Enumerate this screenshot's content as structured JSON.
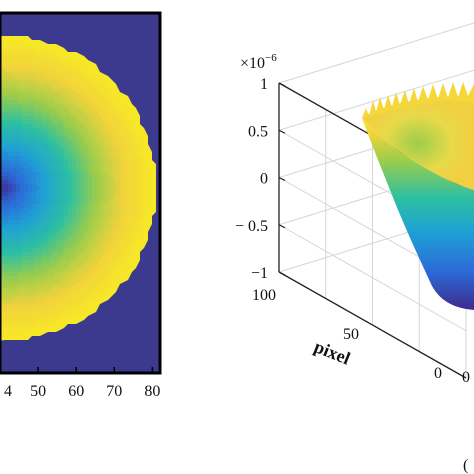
{
  "chart_data": [
    {
      "type": "heatmap",
      "title": "",
      "xlabel": "",
      "ylabel": "",
      "xlim": [
        40,
        82
      ],
      "x_ticks": [
        "50",
        "60",
        "70",
        "80"
      ],
      "x_tick_values": [
        50,
        60,
        70,
        80
      ],
      "x_partial_tick": "4",
      "pattern": "concentric-rings",
      "pattern_center_x": 41,
      "pattern_radius": 40,
      "background_color": "#3b3a8f",
      "colormap": [
        "#3e2a8c",
        "#2c6ad8",
        "#1f9fd5",
        "#2bbfa3",
        "#9ccd4b",
        "#f2d33b",
        "#f7e826"
      ]
    },
    {
      "type": "surface",
      "title": "",
      "xlabel": "pixel",
      "ylabel": "",
      "zlabel": "",
      "z_exponent_label": "×10",
      "z_exponent_power": "−6",
      "zlim": [
        -1,
        1
      ],
      "z_ticks": [
        "1",
        "0.5",
        "0",
        "− 0.5",
        "−1"
      ],
      "z_tick_values": [
        1,
        0.5,
        0,
        -0.5,
        -1
      ],
      "x_ticks": [
        "100",
        "50",
        "0"
      ],
      "x_tick_values": [
        100,
        50,
        0
      ],
      "y_partial_tick": "0",
      "shape": "paraboloid",
      "rim_z": 0.6,
      "bottom_z": -1,
      "colormap": [
        "#3e2a8c",
        "#2c6ad8",
        "#1f9fd5",
        "#2bbfa3",
        "#9ccd4b",
        "#f2d33b",
        "#f7e826"
      ]
    }
  ],
  "page": {
    "partial_label_bottom_right": "("
  }
}
